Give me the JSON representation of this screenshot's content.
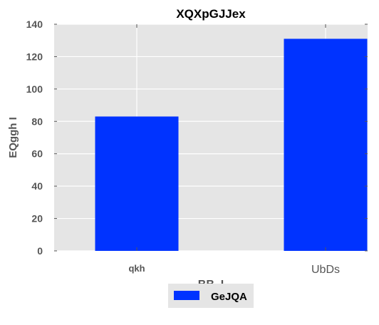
{
  "chart_data": {
    "type": "bar",
    "title": "XQXpGJJex",
    "xlabel": "BB_I",
    "ylabel": "EQggh I",
    "categories": [
      "qkh",
      "UbDs"
    ],
    "series": [
      {
        "name": "GeJQA",
        "values": [
          83,
          131
        ],
        "color": "#0033ff"
      }
    ],
    "ylim": [
      0,
      140
    ],
    "yticks": [
      0,
      20,
      40,
      60,
      80,
      100,
      120,
      140
    ],
    "grid": true,
    "legend_position": "bottom-center",
    "plot_background": "#e5e5e5",
    "grid_color": "#ffffff"
  }
}
